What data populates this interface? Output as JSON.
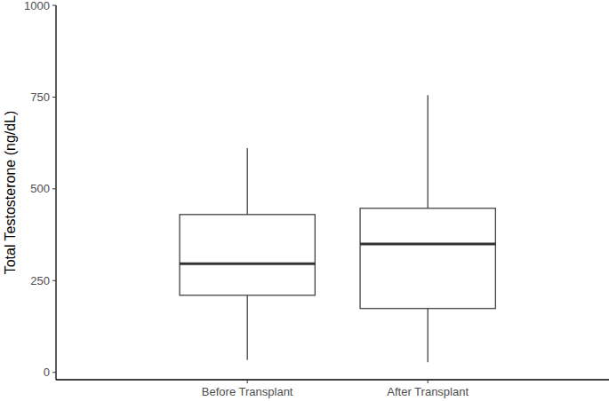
{
  "chart_data": {
    "type": "box",
    "y_label": "Total Testosterone (ng/dL)",
    "categories": [
      "Before Transplant",
      "After Transplant"
    ],
    "min": [
      34,
      28
    ],
    "q1": [
      210,
      174
    ],
    "median": [
      296,
      350
    ],
    "q3": [
      430,
      447
    ],
    "max": [
      611,
      755
    ],
    "color": "#333333",
    "ylim": [
      -20,
      1000
    ],
    "yticks": [
      0,
      250,
      500,
      750,
      1000
    ],
    "grid": false
  }
}
